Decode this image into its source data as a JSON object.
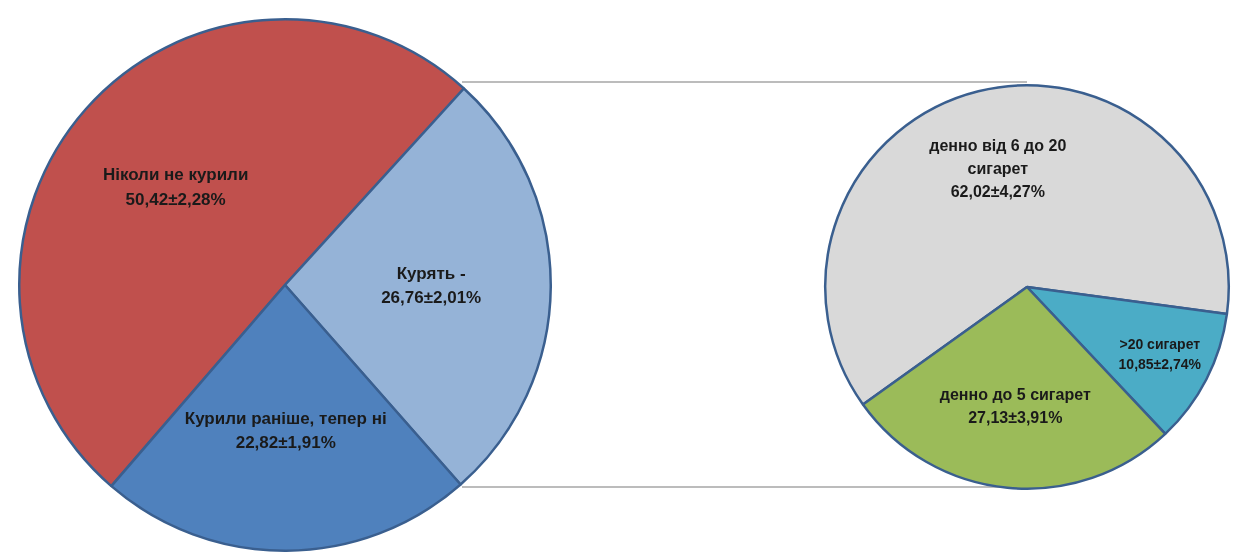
{
  "chart_data": [
    {
      "type": "pie",
      "categories": [
        "Ніколи не курили",
        "Курять -",
        "Курили раніше, тепер ні"
      ],
      "values": [
        50.42,
        26.76,
        22.82
      ],
      "colors": [
        "#c0504d",
        "#95b3d7",
        "#4f81bd"
      ],
      "value_labels": [
        "50,42±2,28%",
        "26,76±2,01%",
        "22,82±1,91%"
      ],
      "legend": false
    },
    {
      "type": "pie",
      "categories": [
        "денно від 6 до 20 сигарет",
        ">20 сигарет",
        "денно до 5 сигарет"
      ],
      "values": [
        62.02,
        10.85,
        27.13
      ],
      "colors": [
        "#d9d9d9",
        "#4bacc6",
        "#9bbb59"
      ],
      "value_labels": [
        "62,02±4,27%",
        "10,85±2,74%",
        "27,13±3,91%"
      ],
      "legend": false
    }
  ]
}
